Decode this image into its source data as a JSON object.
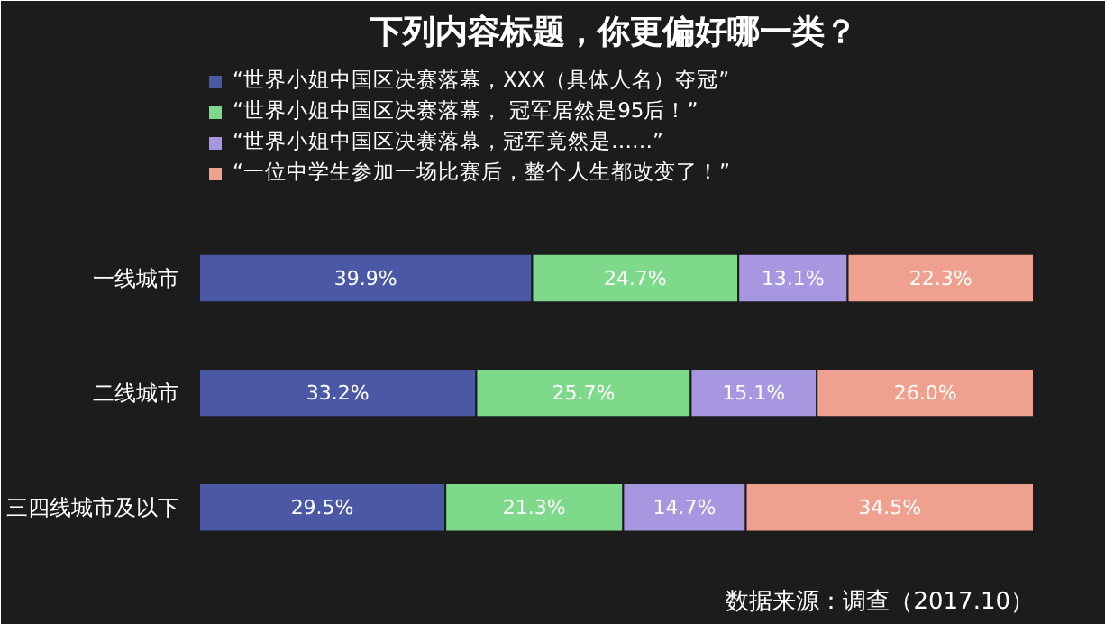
{
  "chart_data": {
    "type": "bar",
    "orientation": "horizontal",
    "stacked": true,
    "title": "下列内容标题，你更偏好哪一类？",
    "categories": [
      "一线城市",
      "二线城市",
      "三四线城市及以下"
    ],
    "series": [
      {
        "name": "“世界小姐中国区决赛落幕，XXX（具体人名）夺冠”",
        "color": "#4a58a6",
        "values": [
          39.9,
          33.2,
          29.5
        ],
        "value_labels": [
          "39.9%",
          "33.2%",
          "29.5%"
        ]
      },
      {
        "name": "“世界小姐中国区决赛落幕， 冠军居然是95后！”",
        "color": "#7ed98a",
        "values": [
          24.7,
          25.7,
          21.3
        ],
        "value_labels": [
          "24.7%",
          "25.7%",
          "21.3%"
        ]
      },
      {
        "name": "“世界小姐中国区决赛落幕，冠军竟然是……”",
        "color": "#a797e0",
        "values": [
          13.1,
          15.1,
          14.7
        ],
        "value_labels": [
          "13.1%",
          "15.1%",
          "14.7%"
        ]
      },
      {
        "name": "“一位中学生参加一场比赛后，整个人生都改变了！”",
        "color": "#f0a08e",
        "values": [
          22.3,
          26.0,
          34.5
        ],
        "value_labels": [
          "22.3%",
          "26.0%",
          "34.5%"
        ]
      }
    ],
    "tick_labels": "y",
    "legend": "top",
    "annotations": [
      "数据来源：调查（2017.10）"
    ]
  }
}
